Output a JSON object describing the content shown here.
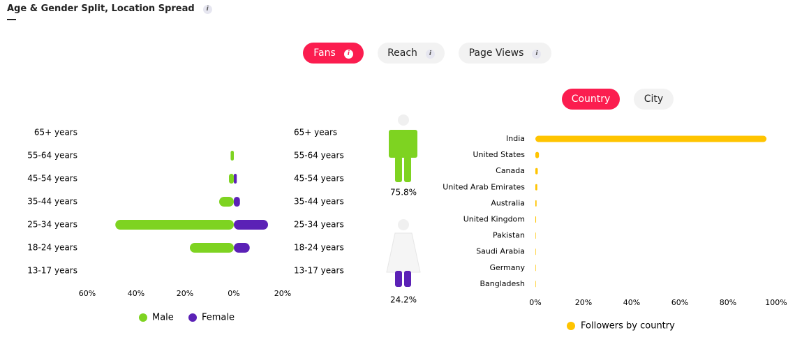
{
  "header": {
    "title": "Age & Gender Split, Location Spread",
    "info": "i"
  },
  "tabs": {
    "items": [
      "Fans",
      "Reach",
      "Page Views"
    ],
    "active": 0,
    "info": "i"
  },
  "location_tabs": {
    "items": [
      "Country",
      "City"
    ],
    "active": 0
  },
  "chart_data": [
    {
      "type": "pyramid",
      "categories": [
        "65+ years",
        "55-64 years",
        "45-54 years",
        "35-44 years",
        "25-34 years",
        "18-24 years",
        "13-17 years"
      ],
      "series": [
        {
          "name": "Male",
          "color": "#7ed321",
          "values": [
            0,
            -1.3,
            -2,
            -6,
            -48.5,
            -18,
            0
          ]
        },
        {
          "name": "Female",
          "color": "#5b21b6",
          "values": [
            0,
            0,
            1.2,
            2.5,
            14,
            6.5,
            0
          ]
        }
      ],
      "xlim": [
        -60,
        20
      ],
      "xticks": [
        {
          "value": -60,
          "label": "60%"
        },
        {
          "value": -40,
          "label": "40%"
        },
        {
          "value": -20,
          "label": "20%"
        },
        {
          "value": 0,
          "label": "0%"
        },
        {
          "value": 20,
          "label": "20%"
        }
      ],
      "totals": {
        "values": [
          75.8,
          24.2
        ],
        "value_labels": [
          "75.8%",
          "24.2%"
        ]
      }
    },
    {
      "type": "hbar",
      "categories": [
        "India",
        "United States",
        "Canada",
        "United Arab Emirates",
        "Australia",
        "United Kingdom",
        "Pakistan",
        "Saudi Arabia",
        "Germany",
        "Bangladesh"
      ],
      "series": [
        {
          "name": "Followers by country",
          "color": "#ffc400",
          "values": [
            96,
            1.5,
            1,
            0.8,
            0.5,
            0.3,
            0.2,
            0.2,
            0.2,
            0.2
          ]
        }
      ],
      "xlim": [
        0,
        100
      ],
      "xticks": [
        {
          "value": 0,
          "label": "0%"
        },
        {
          "value": 20,
          "label": "20%"
        },
        {
          "value": 40,
          "label": "40%"
        },
        {
          "value": 60,
          "label": "60%"
        },
        {
          "value": 80,
          "label": "80%"
        },
        {
          "value": 100,
          "label": "100%"
        }
      ]
    }
  ]
}
